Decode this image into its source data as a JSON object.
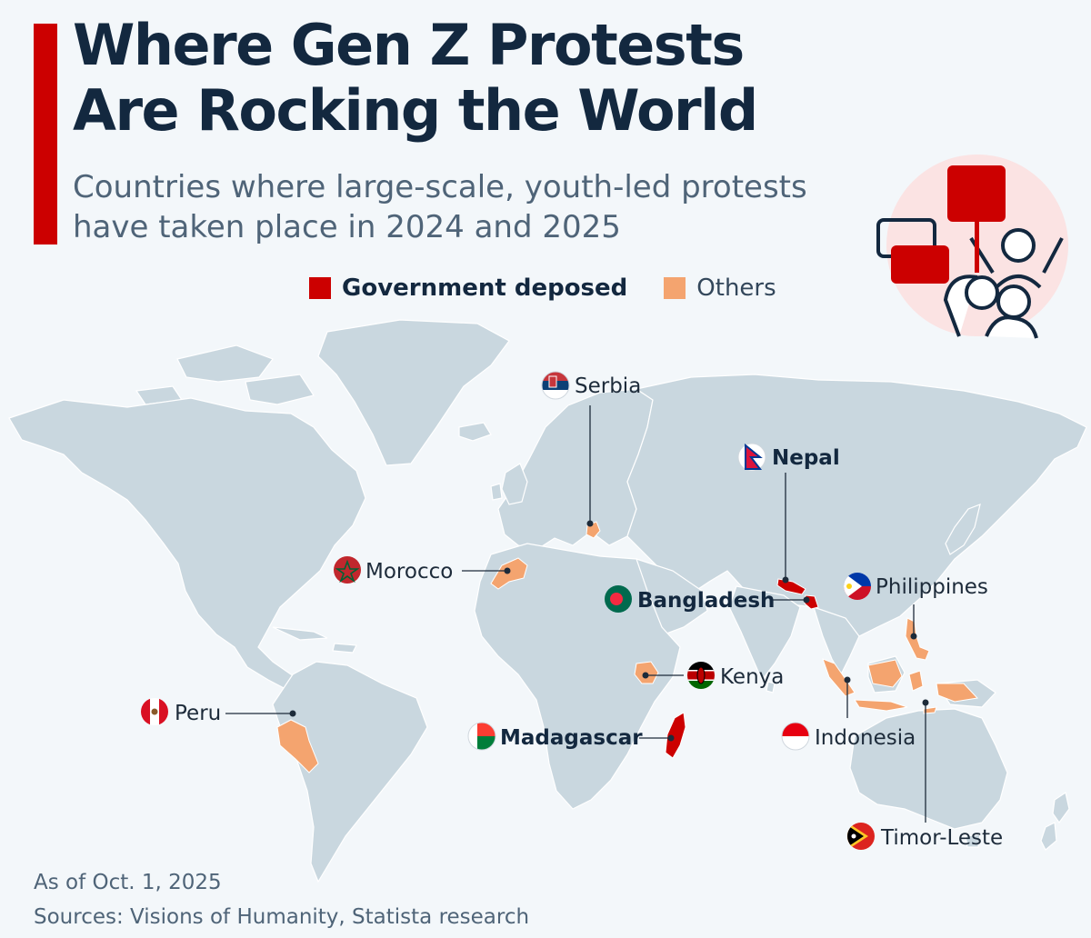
{
  "title_line1": "Where Gen Z Protests",
  "title_line2": "Are Rocking the World",
  "subtitle_line1": "Countries where large-scale, youth-led protests",
  "subtitle_line2": "have taken place in 2024 and 2025",
  "legend": {
    "deposed_label": "Government deposed",
    "others_label": "Others"
  },
  "colors": {
    "accent": "#cc0000",
    "deposed": "#cc0000",
    "others": "#f4a46f",
    "land": "#c9d7df",
    "background": "#f3f7fa"
  },
  "countries": [
    {
      "name": "Serbia",
      "status": "others"
    },
    {
      "name": "Nepal",
      "status": "deposed"
    },
    {
      "name": "Morocco",
      "status": "others"
    },
    {
      "name": "Bangladesh",
      "status": "deposed"
    },
    {
      "name": "Philippines",
      "status": "others"
    },
    {
      "name": "Kenya",
      "status": "others"
    },
    {
      "name": "Peru",
      "status": "others"
    },
    {
      "name": "Madagascar",
      "status": "deposed"
    },
    {
      "name": "Indonesia",
      "status": "others"
    },
    {
      "name": "Timor-Leste",
      "status": "others"
    }
  ],
  "footer": {
    "date_note": "As of Oct. 1, 2025",
    "sources": "Sources: Visions of Humanity, Statista research"
  },
  "icons": {
    "protest_illustration": "protest-icon"
  }
}
